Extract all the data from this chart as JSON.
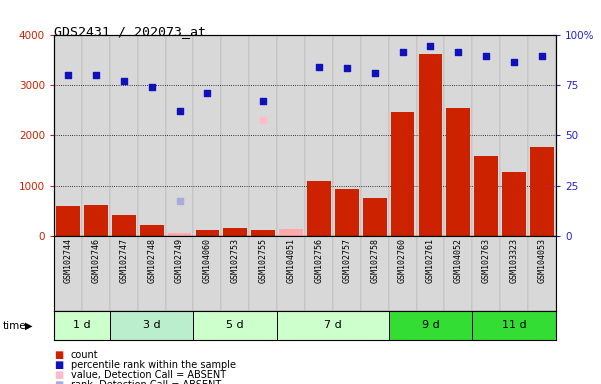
{
  "title": "GDS2431 / 202073_at",
  "samples": [
    "GSM102744",
    "GSM102746",
    "GSM102747",
    "GSM102748",
    "GSM102749",
    "GSM104060",
    "GSM102753",
    "GSM102755",
    "GSM104051",
    "GSM102756",
    "GSM102757",
    "GSM102758",
    "GSM102760",
    "GSM102761",
    "GSM104052",
    "GSM102763",
    "GSM103323",
    "GSM104053"
  ],
  "time_groups": [
    {
      "label": "1 d",
      "start": 0,
      "end": 2,
      "color": "#ccffcc"
    },
    {
      "label": "3 d",
      "start": 2,
      "end": 5,
      "color": "#bbeecc"
    },
    {
      "label": "5 d",
      "start": 5,
      "end": 8,
      "color": "#ccffcc"
    },
    {
      "label": "7 d",
      "start": 8,
      "end": 12,
      "color": "#ccffcc"
    },
    {
      "label": "9 d",
      "start": 12,
      "end": 15,
      "color": "#33dd33"
    },
    {
      "label": "11 d",
      "start": 15,
      "end": 18,
      "color": "#33dd33"
    }
  ],
  "bar_values": [
    590,
    610,
    420,
    230,
    55,
    115,
    170,
    130,
    150,
    1090,
    940,
    760,
    2470,
    3620,
    2540,
    1590,
    1270,
    1760
  ],
  "bar_absent": [
    false,
    false,
    false,
    false,
    true,
    false,
    false,
    false,
    true,
    false,
    false,
    false,
    false,
    false,
    false,
    false,
    false,
    false
  ],
  "scatter_values": [
    3200,
    3200,
    3080,
    2950,
    2480,
    2840,
    null,
    2680,
    null,
    3350,
    3340,
    3230,
    3660,
    3780,
    3660,
    3570,
    3460,
    3570
  ],
  "scatter_absent_vals": [
    null,
    null,
    null,
    null,
    null,
    null,
    null,
    2300,
    null,
    null,
    null,
    null,
    null,
    null,
    null,
    null,
    null,
    null
  ],
  "rank_absent_vals": [
    null,
    null,
    null,
    null,
    690,
    null,
    null,
    null,
    null,
    null,
    null,
    null,
    null,
    null,
    null,
    null,
    null,
    null
  ],
  "ylim_left": [
    0,
    4000
  ],
  "bar_color": "#cc2200",
  "bar_absent_color": "#ffaaaa",
  "scatter_color": "#1111bb",
  "scatter_absent_color": "#ffbbcc",
  "rank_absent_color": "#aaaadd",
  "bg_color": "#ffffff",
  "plot_bg_color": "#e8e8e8",
  "left_tick_color": "#cc2200",
  "right_tick_color": "#2222cc",
  "left_yticks": [
    0,
    1000,
    2000,
    3000,
    4000
  ],
  "right_ytick_labels": [
    "0",
    "25",
    "50",
    "75",
    "100%"
  ]
}
